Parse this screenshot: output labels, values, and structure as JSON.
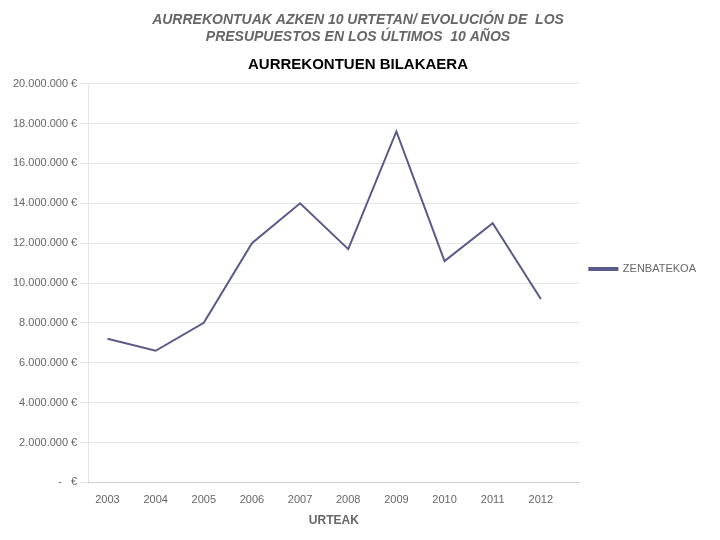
{
  "chart_data": {
    "type": "line",
    "title": [
      "AURREKONTUAK AZKEN 10 URTETAN/ EVOLUCIÓN DE  LOS",
      "PRESUPUESTOS EN LOS ÚLTIMOS  10 AÑOS"
    ],
    "subtitle": "AURREKONTUEN BILAKAERA",
    "x_label": "URTEAK",
    "x": [
      2003,
      2004,
      2005,
      2006,
      2007,
      2008,
      2009,
      2010,
      2011,
      2012
    ],
    "series": [
      {
        "name": "ZENBATEKOA",
        "color": "#5a5a8a",
        "values": [
          7200000,
          6600000,
          8000000,
          12000000,
          14000000,
          11700000,
          17600000,
          11100000,
          13000000,
          9200000
        ]
      }
    ],
    "xlim": [
      2002.6,
      2012.8
    ],
    "xticks": [
      2003,
      2004,
      2005,
      2006,
      2007,
      2008,
      2009,
      2010,
      2011,
      2012
    ],
    "ylim": [
      0,
      20000000
    ],
    "yticks": [
      {
        "value": 0,
        "label": "-   €"
      },
      {
        "value": 2000000,
        "label": "2.000.000 €"
      },
      {
        "value": 4000000,
        "label": "4.000.000 €"
      },
      {
        "value": 6000000,
        "label": "6.000.000 €"
      },
      {
        "value": 8000000,
        "label": "8.000.000 €"
      },
      {
        "value": 10000000,
        "label": "10.000.000 €"
      },
      {
        "value": 12000000,
        "label": "12.000.000 €"
      },
      {
        "value": 14000000,
        "label": "14.000.000 €"
      },
      {
        "value": 16000000,
        "label": "16.000.000 €"
      },
      {
        "value": 18000000,
        "label": "18.000.000 €"
      },
      {
        "value": 20000000,
        "label": "20.000.000 €"
      }
    ],
    "grid": true,
    "legend": "right"
  }
}
